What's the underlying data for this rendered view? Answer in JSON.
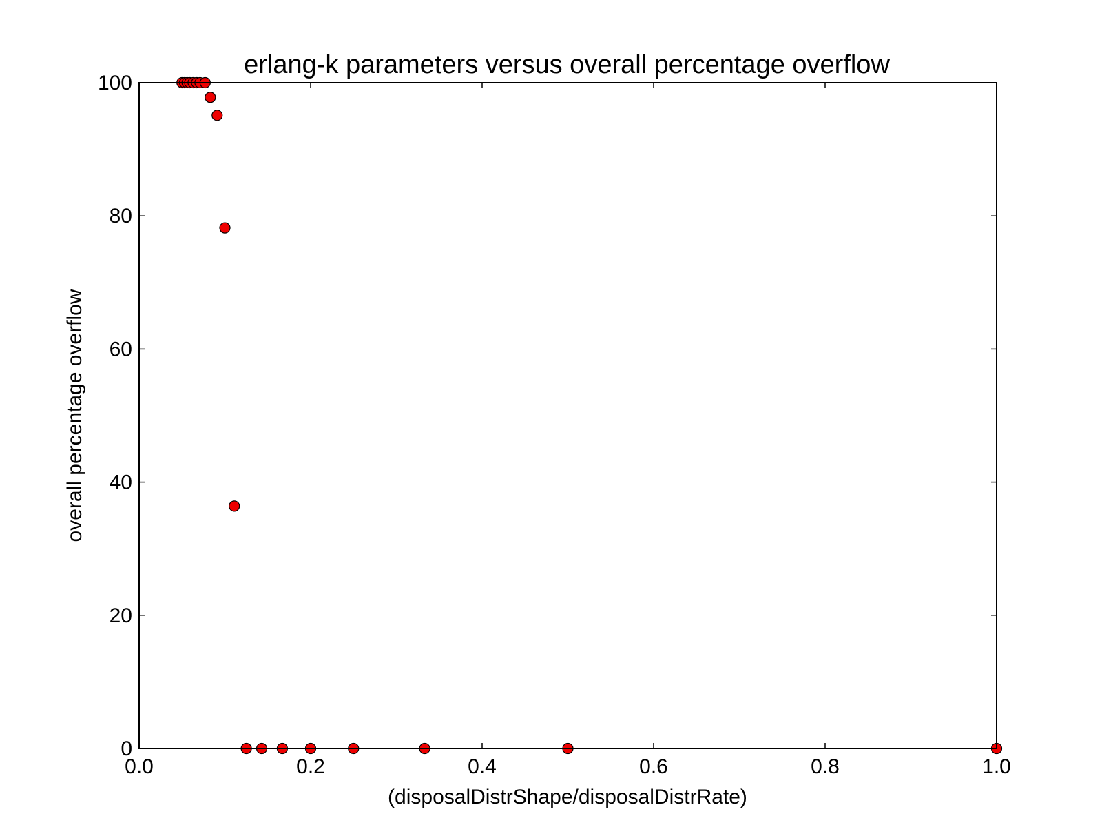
{
  "chart_data": {
    "type": "scatter",
    "title": "erlang-k parameters versus overall percentage overflow",
    "xlabel": "(disposalDistrShape/disposalDistrRate)",
    "ylabel": "overall percentage overflow",
    "xlim": [
      0.0,
      1.0
    ],
    "ylim": [
      0,
      100
    ],
    "x_ticks": [
      0.0,
      0.2,
      0.4,
      0.6,
      0.8,
      1.0
    ],
    "x_tick_labels": [
      "0.0",
      "0.2",
      "0.4",
      "0.6",
      "0.8",
      "1.0"
    ],
    "y_ticks": [
      0,
      20,
      40,
      60,
      80,
      100
    ],
    "y_tick_labels": [
      "0",
      "20",
      "40",
      "60",
      "80",
      "100"
    ],
    "grid": false,
    "marker_color": "#ee0000",
    "marker_edge_color": "#000000",
    "points": [
      {
        "x": 0.05,
        "y": 100.0
      },
      {
        "x": 0.053,
        "y": 100.0
      },
      {
        "x": 0.056,
        "y": 100.0
      },
      {
        "x": 0.059,
        "y": 100.0
      },
      {
        "x": 0.063,
        "y": 100.0
      },
      {
        "x": 0.067,
        "y": 100.0
      },
      {
        "x": 0.071,
        "y": 100.0
      },
      {
        "x": 0.077,
        "y": 100.0
      },
      {
        "x": 0.083,
        "y": 97.8
      },
      {
        "x": 0.091,
        "y": 95.1
      },
      {
        "x": 0.1,
        "y": 78.2
      },
      {
        "x": 0.111,
        "y": 36.4
      },
      {
        "x": 0.125,
        "y": 0.0
      },
      {
        "x": 0.143,
        "y": 0.0
      },
      {
        "x": 0.167,
        "y": 0.0
      },
      {
        "x": 0.2,
        "y": 0.0
      },
      {
        "x": 0.25,
        "y": 0.0
      },
      {
        "x": 0.333,
        "y": 0.0
      },
      {
        "x": 0.5,
        "y": 0.0
      },
      {
        "x": 1.0,
        "y": 0.0
      }
    ]
  }
}
